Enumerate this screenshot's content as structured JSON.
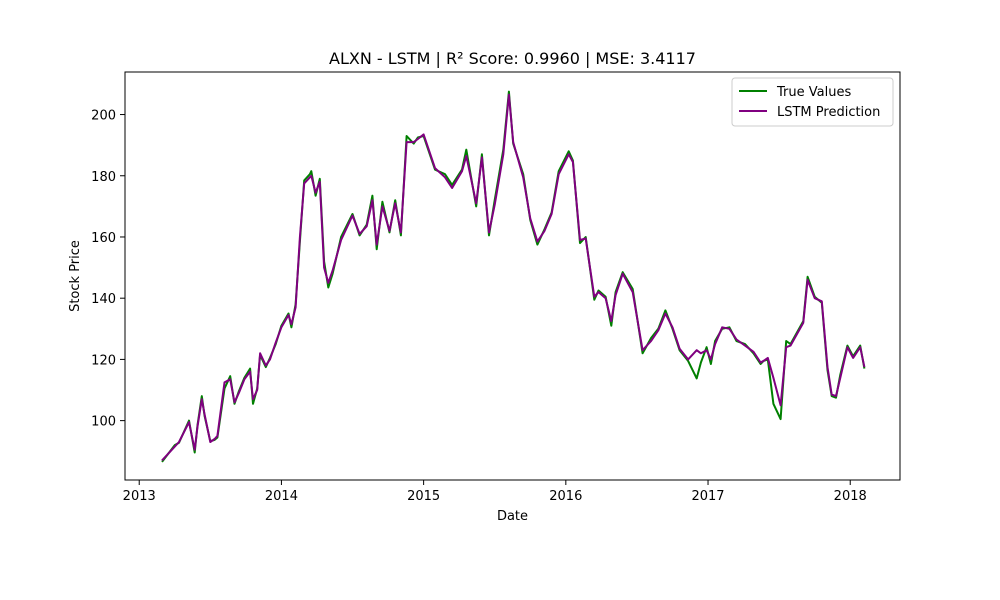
{
  "chart_data": {
    "type": "line",
    "title": "ALXN - LSTM | R² Score: 0.9960 | MSE: 3.4117",
    "xlabel": "Date",
    "ylabel": "Stock Price",
    "xlim": [
      2012.9,
      2018.35
    ],
    "ylim": [
      80.6,
      213.9
    ],
    "x_ticks": [
      2013,
      2014,
      2015,
      2016,
      2017,
      2018
    ],
    "x_tick_labels": [
      "2013",
      "2014",
      "2015",
      "2016",
      "2017",
      "2018"
    ],
    "y_ticks": [
      100,
      120,
      140,
      160,
      180,
      200
    ],
    "y_tick_labels": [
      "100",
      "120",
      "140",
      "160",
      "180",
      "200"
    ],
    "legend": {
      "position": "top-right",
      "entries": [
        "True Values",
        "LSTM Prediction"
      ]
    },
    "series": [
      {
        "name": "True Values",
        "color": "#008000",
        "x": [
          2013.16,
          2013.25,
          2013.28,
          2013.35,
          2013.39,
          2013.41,
          2013.44,
          2013.46,
          2013.5,
          2013.53,
          2013.55,
          2013.6,
          2013.64,
          2013.67,
          2013.7,
          2013.74,
          2013.78,
          2013.8,
          2013.83,
          2013.85,
          2013.89,
          2013.92,
          2013.96,
          2014.0,
          2014.05,
          2014.07,
          2014.1,
          2014.13,
          2014.16,
          2014.2,
          2014.21,
          2014.24,
          2014.27,
          2014.3,
          2014.33,
          2014.36,
          2014.42,
          2014.5,
          2014.55,
          2014.6,
          2014.64,
          2014.67,
          2014.71,
          2014.76,
          2014.8,
          2014.84,
          2014.88,
          2014.93,
          2014.96,
          2015.0,
          2015.08,
          2015.15,
          2015.2,
          2015.27,
          2015.3,
          2015.37,
          2015.41,
          2015.46,
          2015.5,
          2015.56,
          2015.6,
          2015.63,
          2015.7,
          2015.75,
          2015.8,
          2015.85,
          2015.9,
          2015.95,
          2016.02,
          2016.05,
          2016.1,
          2016.14,
          2016.2,
          2016.23,
          2016.28,
          2016.32,
          2016.35,
          2016.4,
          2016.47,
          2016.54,
          2016.6,
          2016.65,
          2016.7,
          2016.75,
          2016.8,
          2016.86,
          2016.92,
          2016.95,
          2016.99,
          2017.02,
          2017.05,
          2017.1,
          2017.15,
          2017.2,
          2017.26,
          2017.32,
          2017.37,
          2017.39,
          2017.42,
          2017.46,
          2017.51,
          2017.55,
          2017.58,
          2017.67,
          2017.7,
          2017.75,
          2017.8,
          2017.84,
          2017.87,
          2017.9,
          2017.93,
          2017.98,
          2018.02,
          2018.07,
          2018.1
        ],
        "values": [
          86.5,
          92.0,
          92.8,
          100.0,
          89.6,
          98.5,
          108.0,
          101.5,
          93.3,
          93.7,
          94.5,
          110.5,
          114.5,
          105.5,
          109.5,
          114.0,
          117.0,
          105.5,
          110.5,
          121.5,
          117.5,
          120.5,
          125.0,
          131.0,
          135.0,
          130.5,
          138.0,
          158.5,
          178.5,
          180.5,
          181.5,
          173.5,
          179.0,
          152.0,
          143.5,
          148.0,
          160.0,
          167.5,
          160.5,
          164.0,
          173.5,
          156.0,
          171.5,
          161.5,
          172.0,
          160.5,
          193.0,
          190.5,
          192.5,
          193.0,
          182.0,
          180.5,
          177.0,
          182.0,
          188.5,
          170.0,
          187.0,
          160.5,
          172.0,
          188.5,
          207.5,
          190.5,
          180.5,
          165.5,
          157.5,
          162.5,
          168.0,
          181.5,
          188.0,
          185.0,
          158.0,
          160.0,
          139.5,
          142.5,
          140.5,
          131.0,
          142.0,
          148.5,
          143.0,
          122.0,
          127.0,
          130.0,
          136.0,
          130.0,
          123.0,
          119.5,
          113.8,
          119.0,
          124.0,
          118.5,
          126.0,
          130.0,
          130.5,
          126.0,
          125.0,
          122.0,
          118.5,
          119.5,
          120.0,
          105.5,
          100.5,
          126.0,
          125.0,
          132.5,
          147.0,
          140.5,
          138.5,
          116.5,
          108.0,
          107.5,
          115.0,
          124.5,
          121.0,
          124.5,
          117.0
        ]
      },
      {
        "name": "LSTM Prediction",
        "color": "#800080",
        "x": [
          2013.16,
          2013.25,
          2013.28,
          2013.35,
          2013.39,
          2013.41,
          2013.44,
          2013.46,
          2013.5,
          2013.53,
          2013.55,
          2013.6,
          2013.64,
          2013.67,
          2013.7,
          2013.74,
          2013.78,
          2013.8,
          2013.83,
          2013.85,
          2013.89,
          2013.92,
          2013.96,
          2014.0,
          2014.05,
          2014.07,
          2014.1,
          2014.13,
          2014.16,
          2014.2,
          2014.21,
          2014.24,
          2014.27,
          2014.3,
          2014.33,
          2014.36,
          2014.42,
          2014.5,
          2014.55,
          2014.6,
          2014.64,
          2014.67,
          2014.71,
          2014.76,
          2014.8,
          2014.84,
          2014.88,
          2014.93,
          2014.96,
          2015.0,
          2015.08,
          2015.15,
          2015.2,
          2015.27,
          2015.3,
          2015.37,
          2015.41,
          2015.46,
          2015.5,
          2015.56,
          2015.6,
          2015.63,
          2015.7,
          2015.75,
          2015.8,
          2015.85,
          2015.9,
          2015.95,
          2016.02,
          2016.05,
          2016.1,
          2016.14,
          2016.2,
          2016.23,
          2016.28,
          2016.32,
          2016.35,
          2016.4,
          2016.47,
          2016.54,
          2016.6,
          2016.65,
          2016.7,
          2016.75,
          2016.8,
          2016.86,
          2016.92,
          2016.95,
          2016.99,
          2017.02,
          2017.05,
          2017.1,
          2017.15,
          2017.2,
          2017.26,
          2017.32,
          2017.37,
          2017.39,
          2017.42,
          2017.46,
          2017.51,
          2017.55,
          2017.58,
          2017.67,
          2017.7,
          2017.75,
          2017.8,
          2017.84,
          2017.87,
          2017.9,
          2017.93,
          2017.98,
          2018.02,
          2018.07,
          2018.1
        ],
        "values": [
          87.0,
          91.5,
          93.0,
          99.5,
          90.5,
          98.0,
          107.0,
          102.0,
          93.0,
          94.0,
          95.0,
          112.5,
          113.5,
          106.0,
          109.0,
          113.5,
          116.0,
          107.0,
          110.0,
          122.0,
          118.0,
          120.0,
          125.5,
          130.5,
          134.5,
          131.5,
          137.0,
          160.0,
          177.5,
          179.5,
          180.0,
          174.5,
          178.0,
          150.0,
          145.0,
          149.0,
          159.0,
          167.0,
          161.0,
          163.5,
          172.0,
          157.5,
          170.0,
          162.0,
          171.0,
          161.5,
          191.0,
          191.0,
          192.0,
          193.5,
          182.5,
          179.5,
          176.0,
          181.5,
          186.5,
          171.0,
          186.0,
          161.5,
          170.5,
          187.0,
          206.5,
          191.0,
          179.5,
          166.0,
          158.5,
          162.0,
          167.5,
          180.5,
          187.0,
          184.5,
          159.0,
          159.5,
          140.5,
          142.0,
          140.0,
          132.5,
          141.0,
          148.0,
          142.0,
          123.0,
          126.0,
          129.5,
          135.0,
          130.5,
          123.5,
          120.0,
          123.0,
          122.0,
          123.0,
          120.0,
          125.0,
          130.5,
          130.0,
          126.5,
          124.5,
          122.5,
          119.0,
          119.5,
          120.5,
          114.0,
          105.0,
          124.0,
          124.5,
          132.0,
          146.0,
          140.0,
          139.0,
          117.5,
          108.5,
          108.0,
          114.0,
          124.0,
          120.5,
          124.0,
          117.5
        ]
      }
    ]
  }
}
